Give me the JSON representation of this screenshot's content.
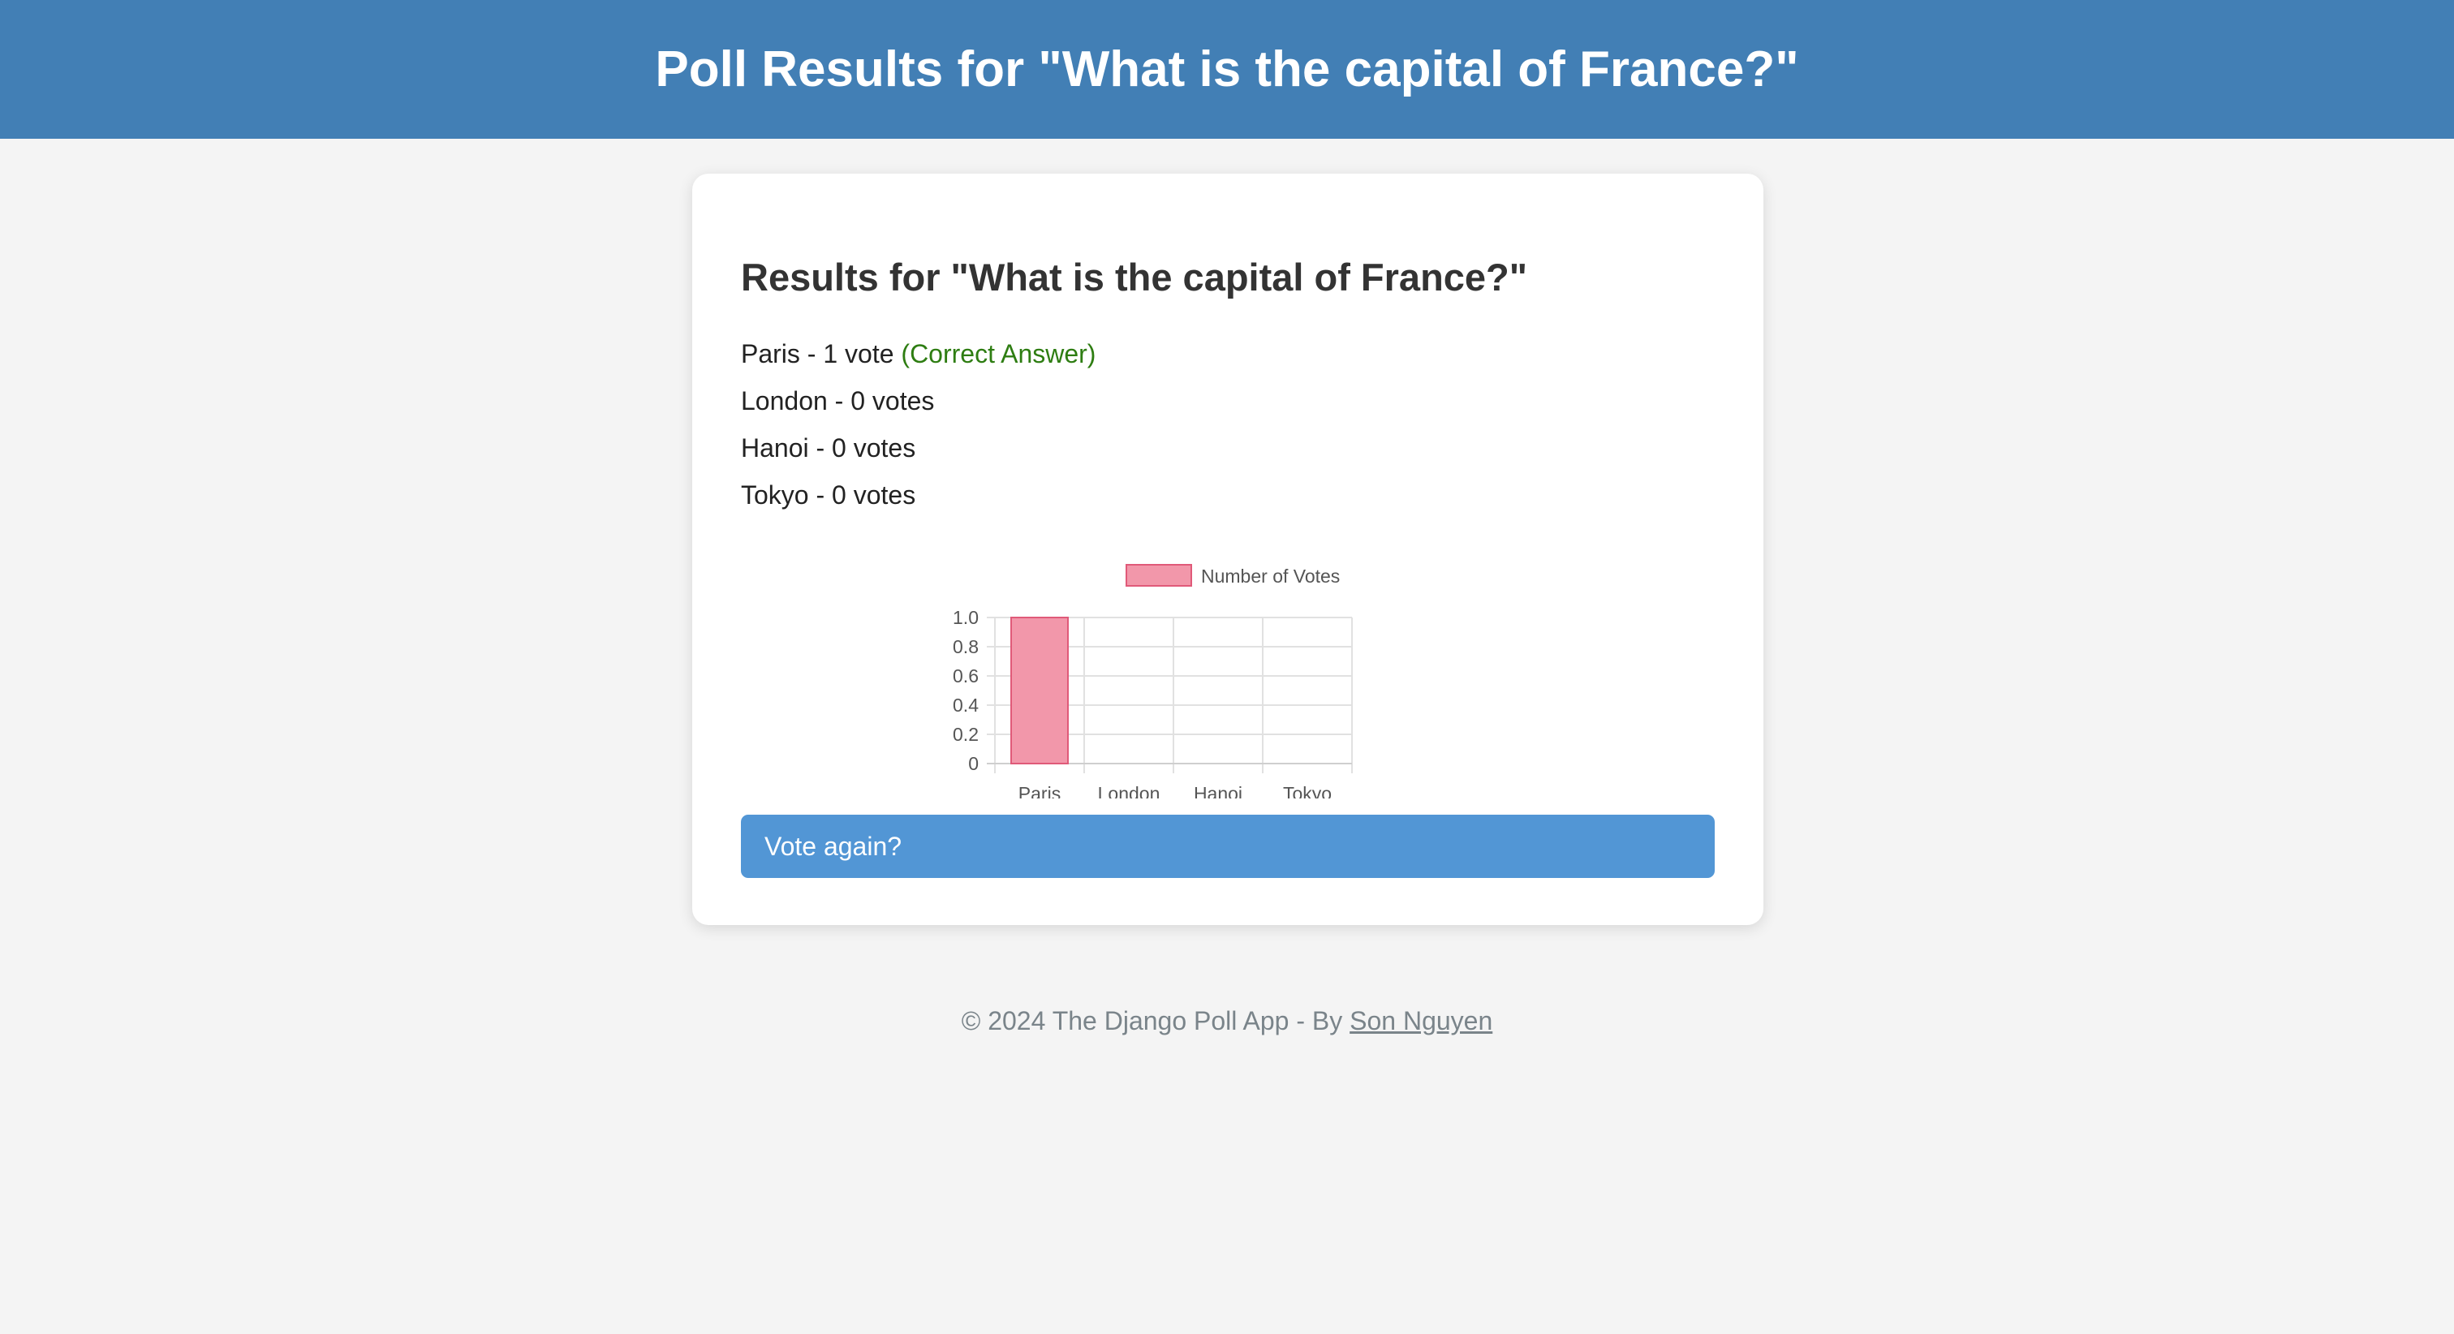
{
  "header": {
    "title": "Poll Results for \"What is the capital of France?\""
  },
  "card": {
    "title": "Results for \"What is the capital of France?\"",
    "results": [
      {
        "label": "Paris - 1 vote",
        "note": "(Correct Answer)"
      },
      {
        "label": "London - 0 votes"
      },
      {
        "label": "Hanoi - 0 votes"
      },
      {
        "label": "Tokyo - 0 votes"
      }
    ],
    "vote_again_label": "Vote again?"
  },
  "chart_data": {
    "type": "bar",
    "categories": [
      "Paris",
      "London",
      "Hanoi",
      "Tokyo"
    ],
    "series": [
      {
        "name": "Number of Votes",
        "values": [
          1,
          0,
          0,
          0
        ],
        "color": "#f297aa",
        "border": "#e05a79"
      }
    ],
    "y_ticks": [
      "0",
      "0.2",
      "0.4",
      "0.6",
      "0.8",
      "1.0"
    ],
    "ylim": [
      0,
      1
    ],
    "grid": true,
    "legend": "top"
  },
  "footer": {
    "text": "© 2024 The Django Poll App - By ",
    "author": "Son Nguyen"
  },
  "colors": {
    "header_bg": "#427fb5",
    "button_bg": "#5296d5",
    "correct": "#2e7d12",
    "page_bg": "#f4f4f4"
  }
}
